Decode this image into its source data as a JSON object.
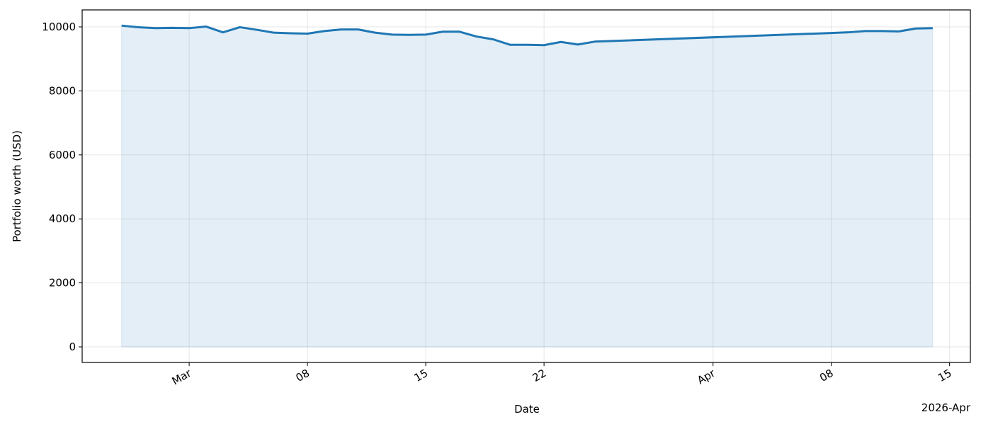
{
  "chart_data": {
    "type": "line",
    "xlabel": "Date",
    "ylabel": "Portfolio worth (USD)",
    "x_offset_label": "2026-Apr",
    "x": [
      "2026-02-25",
      "2026-02-26",
      "2026-02-27",
      "2026-02-28",
      "2026-03-01",
      "2026-03-02",
      "2026-03-03",
      "2026-03-04",
      "2026-03-05",
      "2026-03-06",
      "2026-03-07",
      "2026-03-08",
      "2026-03-09",
      "2026-03-10",
      "2026-03-11",
      "2026-03-12",
      "2026-03-13",
      "2026-03-14",
      "2026-03-15",
      "2026-03-16",
      "2026-03-17",
      "2026-03-18",
      "2026-03-19",
      "2026-03-20",
      "2026-03-21",
      "2026-03-22",
      "2026-03-23",
      "2026-03-24",
      "2026-03-25",
      "2026-04-08",
      "2026-04-09",
      "2026-04-10",
      "2026-04-11",
      "2026-04-12",
      "2026-04-13",
      "2026-04-14"
    ],
    "series": [
      {
        "color": "#1f77b4",
        "fill": true,
        "values": [
          10040,
          9990,
          9960,
          9970,
          9960,
          10010,
          9830,
          9990,
          9910,
          9820,
          9800,
          9790,
          9870,
          9920,
          9920,
          9820,
          9760,
          9750,
          9760,
          9850,
          9850,
          9700,
          9610,
          9440,
          9440,
          9430,
          9530,
          9450,
          9540,
          9810,
          9830,
          9870,
          9870,
          9860,
          9950,
          9960
        ]
      }
    ],
    "xlim": [
      "2026-02-22T16:00",
      "2026-04-16T05:30"
    ],
    "xticks": [
      {
        "value": "2026-03-01",
        "label": "Mar"
      },
      {
        "value": "2026-03-08",
        "label": "08"
      },
      {
        "value": "2026-03-15",
        "label": "15"
      },
      {
        "value": "2026-03-22",
        "label": "22"
      },
      {
        "value": "2026-04-01",
        "label": "Apr"
      },
      {
        "value": "2026-04-08",
        "label": "08"
      },
      {
        "value": "2026-04-15",
        "label": "15"
      }
    ],
    "ylim": [
      -487,
      10531
    ],
    "yticks": [
      0,
      2000,
      4000,
      6000,
      8000,
      10000
    ],
    "grid": true
  }
}
